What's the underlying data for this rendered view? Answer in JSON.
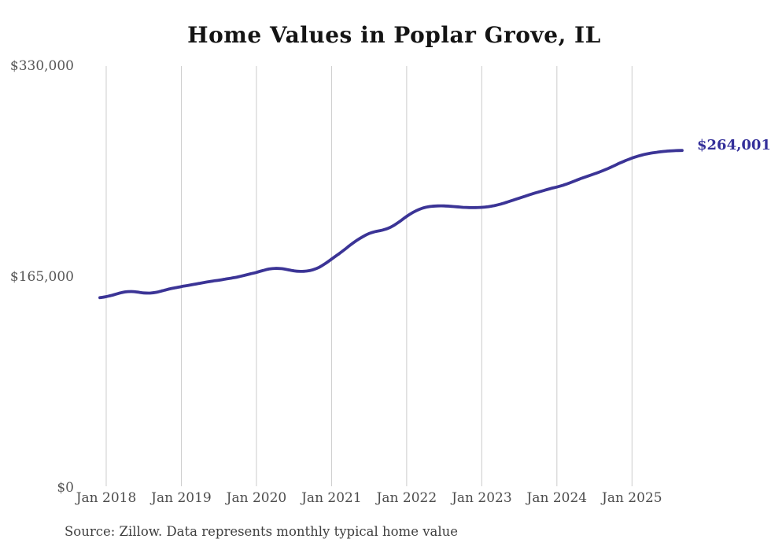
{
  "chart_data": {
    "type": "line",
    "title": "Home Values in Poplar Grove, IL",
    "source": "Source: Zillow. Data represents monthly typical home value",
    "end_label": "$264,001",
    "end_value": 264001,
    "xlabel": "",
    "ylabel": "",
    "ylim": [
      0,
      330000
    ],
    "grid": "vertical-only",
    "legend": "none",
    "line_color": "#3b3496",
    "grid_color": "#cccccc",
    "x_tick_labels": [
      "Jan 2018",
      "Jan 2019",
      "Jan 2020",
      "Jan 2021",
      "Jan 2022",
      "Jan 2023",
      "Jan 2024",
      "Jan 2025"
    ],
    "y_tick_labels": [
      "$330,000",
      "$165,000",
      "$0"
    ],
    "y_tick_values": [
      330000,
      165000,
      0
    ],
    "series": [
      {
        "name": "Monthly typical home value",
        "start_month": "2017-12",
        "interval": "month",
        "end_month": "2025-09",
        "values": [
          148800,
          149600,
          150800,
          152200,
          153300,
          153600,
          153200,
          152500,
          152400,
          153000,
          154200,
          155500,
          156500,
          157500,
          158300,
          159200,
          160100,
          161000,
          161800,
          162500,
          163300,
          164100,
          165000,
          166200,
          167400,
          168600,
          170000,
          171200,
          171700,
          171500,
          170700,
          169800,
          169400,
          169600,
          170600,
          172500,
          175500,
          179000,
          182500,
          186100,
          190000,
          193500,
          196500,
          199000,
          200500,
          201500,
          203000,
          205500,
          208800,
          212400,
          215500,
          217900,
          219500,
          220300,
          220600,
          220600,
          220300,
          219900,
          219500,
          219300,
          219300,
          219500,
          220000,
          220800,
          222000,
          223500,
          225100,
          226700,
          228300,
          229900,
          231400,
          232800,
          234200,
          235400,
          236800,
          238500,
          240400,
          242300,
          244000,
          245700,
          247500,
          249500,
          251700,
          254000,
          256100,
          258000,
          259600,
          260900,
          261900,
          262600,
          263200,
          263600,
          263900,
          264001
        ]
      }
    ]
  }
}
